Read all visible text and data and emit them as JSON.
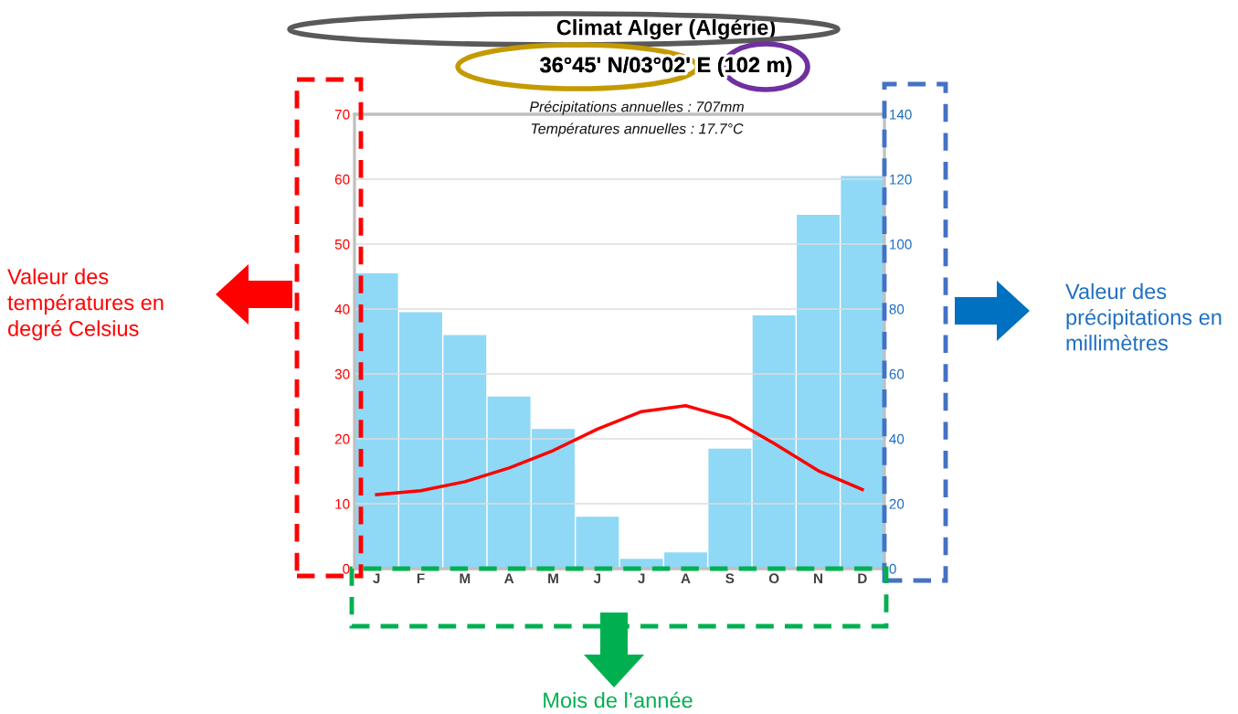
{
  "chart_data": {
    "type": "bar",
    "title": "Climat Alger (Algérie)",
    "subtitle": "36°45' N/03°02' E (102 m)",
    "categories": [
      "J",
      "F",
      "M",
      "A",
      "M",
      "J",
      "J",
      "A",
      "S",
      "O",
      "N",
      "D"
    ],
    "series": [
      {
        "axis": "y2",
        "color": "#8fd8f6",
        "values": [
          91,
          79,
          72,
          53,
          43,
          16,
          3,
          5,
          37,
          78,
          109,
          121
        ]
      },
      {
        "type": "line",
        "color": "#ff0000",
        "values": [
          11.4,
          12.0,
          13.4,
          15.5,
          18.2,
          21.5,
          24.2,
          25.1,
          23.2,
          19.3,
          15.1,
          12.2
        ]
      }
    ],
    "ylim": [
      0,
      70
    ],
    "yticks": [
      0,
      10,
      20,
      30,
      40,
      50,
      60,
      70
    ],
    "y2lim": [
      0,
      140
    ],
    "y2ticks": [
      0,
      20,
      40,
      60,
      80,
      100,
      120,
      140
    ],
    "grid": "y",
    "marker": "none",
    "line_style": "solid",
    "annotations": [
      "Précipitations annuelles : 707mm",
      "Températures annuelles : 17.7°C",
      "Valeur des\ntempératures en\ndegré Celsius",
      "Valeur des\nprécipitations en\nmillimètres",
      "Mois de l’année"
    ]
  }
}
